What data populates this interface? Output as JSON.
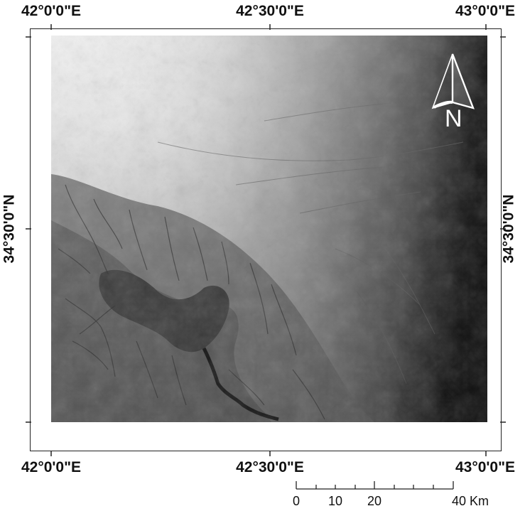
{
  "map": {
    "top_ticks": [
      "42°0'0\"E",
      "42°30'0\"E",
      "43°0'0\"E"
    ],
    "bottom_ticks": [
      "42°0'0\"E",
      "42°30'0\"E",
      "43°0'0\"E"
    ],
    "left_tick": "34°30'0\"N",
    "right_tick": "34°30'0\"N",
    "north_label": "N",
    "north_arrow_icon": "north-arrow-icon",
    "scale_bar": {
      "labels": [
        "0",
        "10",
        "20",
        "40 Km"
      ],
      "values": [
        0,
        10,
        20,
        40
      ],
      "unit": "Km"
    },
    "raster": "grayscale elevation model",
    "colors": {
      "high": "#f2f2f2",
      "low": "#0a0a0a",
      "frame": "#222222"
    }
  }
}
